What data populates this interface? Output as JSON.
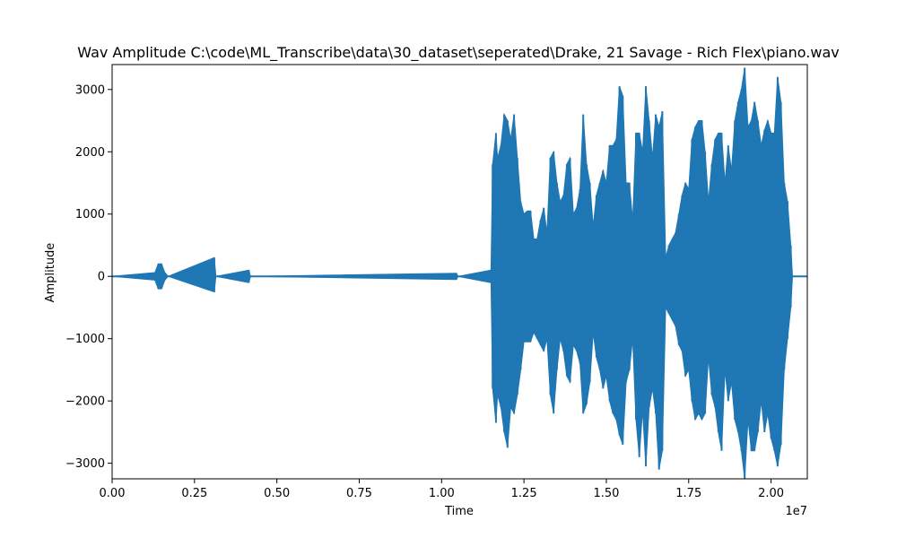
{
  "chart_data": {
    "type": "line",
    "title": "Wav Amplitude C:\\code\\ML_Transcribe\\data\\30_dataset\\seperated\\Drake, 21 Savage - Rich Flex\\piano.wav",
    "xlabel": "Time",
    "ylabel": "Amplitude",
    "x_offset_label": "1e7",
    "xlim": [
      0,
      21100000
    ],
    "ylim": [
      -3250,
      3400
    ],
    "x_ticks": [
      0,
      2500000,
      5000000,
      7500000,
      10000000,
      12500000,
      15000000,
      17500000,
      20000000
    ],
    "x_tick_labels": [
      "0.00",
      "0.25",
      "0.50",
      "0.75",
      "1.00",
      "1.25",
      "1.50",
      "1.75",
      "2.00"
    ],
    "y_ticks": [
      -3000,
      -2000,
      -1000,
      0,
      1000,
      2000,
      3000
    ],
    "y_tick_labels": [
      "−3000",
      "−2000",
      "−1000",
      "0",
      "1000",
      "2000",
      "3000"
    ],
    "grid": false,
    "series": [
      {
        "color": "#1f77b4",
        "envelope_x": [
          0,
          1300000,
          1400000,
          1500000,
          1600000,
          1700000,
          3100000,
          3150000,
          4150000,
          4200000,
          10450000,
          10500000,
          11500000,
          11550000,
          11650000,
          11700000,
          11800000,
          11900000,
          12000000,
          12100000,
          12200000,
          12300000,
          12400000,
          12500000,
          12600000,
          12700000,
          12800000,
          12900000,
          13000000,
          13100000,
          13200000,
          13300000,
          13400000,
          13500000,
          13600000,
          13700000,
          13800000,
          13900000,
          14000000,
          14100000,
          14200000,
          14300000,
          14400000,
          14500000,
          14600000,
          14700000,
          14800000,
          14900000,
          15000000,
          15100000,
          15200000,
          15300000,
          15400000,
          15500000,
          15600000,
          15700000,
          15800000,
          15900000,
          16000000,
          16100000,
          16200000,
          16300000,
          16400000,
          16500000,
          16600000,
          16700000,
          16800000,
          16900000,
          17000000,
          17100000,
          17200000,
          17300000,
          17400000,
          17500000,
          17600000,
          17700000,
          17800000,
          17900000,
          18000000,
          18100000,
          18200000,
          18300000,
          18400000,
          18500000,
          18600000,
          18700000,
          18800000,
          18900000,
          19000000,
          19100000,
          19200000,
          19300000,
          19400000,
          19500000,
          19600000,
          19700000,
          19800000,
          19900000,
          20000000,
          20100000,
          20200000,
          20300000,
          20400000,
          20500000,
          20600000,
          20650000,
          21100000
        ],
        "envelope_max": [
          0,
          60,
          200,
          200,
          60,
          0,
          300,
          0,
          100,
          0,
          50,
          0,
          100,
          1800,
          2300,
          1900,
          2100,
          2600,
          2500,
          2200,
          2600,
          1900,
          1200,
          1000,
          1050,
          1050,
          600,
          600,
          900,
          1100,
          700,
          1900,
          2000,
          1500,
          1200,
          1300,
          1800,
          1900,
          1000,
          1100,
          1400,
          2600,
          1800,
          1500,
          800,
          1300,
          1500,
          1700,
          1500,
          2100,
          2100,
          2200,
          3050,
          2900,
          1500,
          1500,
          900,
          2300,
          2300,
          2000,
          3050,
          2500,
          1900,
          2600,
          2400,
          2650,
          300,
          500,
          600,
          700,
          1000,
          1300,
          1500,
          1400,
          2200,
          2400,
          2500,
          2500,
          2000,
          1200,
          1800,
          2200,
          2300,
          2300,
          1500,
          2100,
          1700,
          2500,
          2800,
          3000,
          3350,
          2400,
          2500,
          2800,
          2500,
          2100,
          2350,
          2500,
          2300,
          2300,
          3200,
          2800,
          1500,
          1200,
          500,
          0,
          0
        ],
        "envelope_min": [
          0,
          -60,
          -200,
          -200,
          -60,
          0,
          -250,
          0,
          -100,
          0,
          -50,
          0,
          -100,
          -1800,
          -2350,
          -1900,
          -2100,
          -2500,
          -2750,
          -2100,
          -2200,
          -1900,
          -1500,
          -1050,
          -1050,
          -1050,
          -900,
          -1000,
          -1100,
          -1200,
          -1000,
          -1900,
          -2200,
          -1500,
          -1000,
          -1200,
          -1600,
          -1700,
          -1100,
          -1200,
          -1400,
          -2200,
          -2050,
          -1700,
          -900,
          -1300,
          -1500,
          -1800,
          -1600,
          -2000,
          -2200,
          -2300,
          -2550,
          -2700,
          -1700,
          -1500,
          -1000,
          -2300,
          -2900,
          -2150,
          -3050,
          -2100,
          -1800,
          -2200,
          -3100,
          -2800,
          -500,
          -600,
          -700,
          -800,
          -1100,
          -1200,
          -1600,
          -1500,
          -2000,
          -2300,
          -2200,
          -2300,
          -2200,
          -1300,
          -1900,
          -2100,
          -2500,
          -2800,
          -1500,
          -2000,
          -1700,
          -2300,
          -2500,
          -2800,
          -3250,
          -2300,
          -2800,
          -2800,
          -2500,
          -2000,
          -2500,
          -2200,
          -2600,
          -2800,
          -3050,
          -2700,
          -1500,
          -1000,
          -500,
          0,
          0
        ]
      }
    ]
  }
}
